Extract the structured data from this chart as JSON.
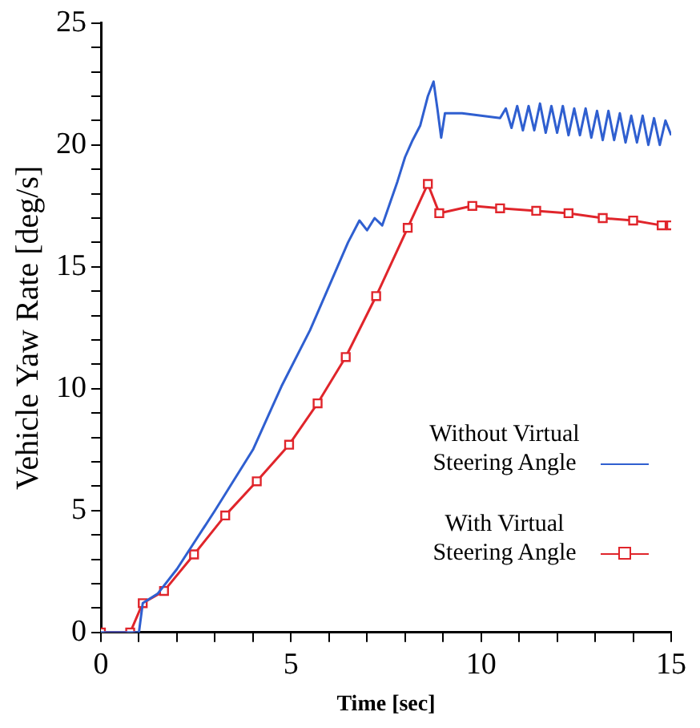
{
  "chart_data": {
    "type": "line",
    "xlabel": "Time [sec]",
    "ylabel": "Vehicle Yaw Rate [deg/s]",
    "xlim": [
      0,
      15
    ],
    "ylim": [
      0,
      25
    ],
    "xticks": [
      0,
      {
        "value": 1,
        "label": null
      },
      {
        "value": 2,
        "label": null
      },
      {
        "value": 3,
        "label": null
      },
      {
        "value": 4,
        "label": null
      },
      5,
      {
        "value": 6,
        "label": null
      },
      {
        "value": 7,
        "label": null
      },
      {
        "value": 8,
        "label": null
      },
      {
        "value": 9,
        "label": null
      },
      10,
      {
        "value": 11,
        "label": null
      },
      {
        "value": 12,
        "label": null
      },
      {
        "value": 13,
        "label": null
      },
      {
        "value": 14,
        "label": null
      },
      15
    ],
    "yticks": [
      0,
      {
        "value": 1,
        "label": null
      },
      {
        "value": 2,
        "label": null
      },
      {
        "value": 3,
        "label": null
      },
      {
        "value": 4,
        "label": null
      },
      5,
      {
        "value": 6,
        "label": null
      },
      {
        "value": 7,
        "label": null
      },
      {
        "value": 8,
        "label": null
      },
      {
        "value": 9,
        "label": null
      },
      10,
      {
        "value": 11,
        "label": null
      },
      {
        "value": 12,
        "label": null
      },
      {
        "value": 13,
        "label": null
      },
      {
        "value": 14,
        "label": null
      },
      15,
      {
        "value": 16,
        "label": null
      },
      {
        "value": 17,
        "label": null
      },
      {
        "value": 18,
        "label": null
      },
      {
        "value": 19,
        "label": null
      },
      20,
      {
        "value": 21,
        "label": null
      },
      {
        "value": 22,
        "label": null
      },
      {
        "value": 23,
        "label": null
      },
      {
        "value": 24,
        "label": null
      },
      25
    ],
    "grid": false,
    "legend": "bottom right",
    "series": [
      {
        "name": "Without Virtual Steering Angle",
        "color": "#2f5fd0",
        "marker": "none",
        "x": [
          0,
          1.0,
          1.1,
          1.5,
          2,
          3,
          4,
          4.75,
          5.5,
          6,
          6.5,
          6.8,
          7.0,
          7.2,
          7.4,
          7.6,
          7.8,
          8.0,
          8.2,
          8.4,
          8.6,
          8.75,
          8.85,
          8.95,
          9.05,
          9.5,
          10,
          10.5,
          10.65,
          10.8,
          10.95,
          11.1,
          11.25,
          11.4,
          11.55,
          11.7,
          11.85,
          12,
          12.15,
          12.3,
          12.45,
          12.6,
          12.75,
          12.9,
          13.05,
          13.2,
          13.35,
          13.5,
          13.65,
          13.8,
          13.95,
          14.1,
          14.25,
          14.4,
          14.55,
          14.7,
          14.85,
          15
        ],
        "values": [
          0,
          0,
          1.2,
          1.6,
          2.6,
          5.0,
          7.5,
          10.1,
          12.4,
          14.2,
          16.0,
          16.9,
          16.5,
          17.0,
          16.7,
          17.6,
          18.5,
          19.5,
          20.2,
          20.8,
          22.0,
          22.6,
          21.5,
          20.3,
          21.3,
          21.3,
          21.2,
          21.1,
          21.5,
          20.7,
          21.6,
          20.6,
          21.6,
          20.6,
          21.7,
          20.5,
          21.6,
          20.5,
          21.6,
          20.4,
          21.5,
          20.4,
          21.5,
          20.3,
          21.4,
          20.2,
          21.4,
          20.2,
          21.3,
          20.1,
          21.2,
          20.1,
          21.2,
          20.0,
          21.1,
          20.0,
          21.0,
          20.4
        ]
      },
      {
        "name": "With Virtual Steering Angle",
        "color": "#e0252b",
        "marker": "square",
        "x": [
          0,
          0.77,
          1.1,
          1.66,
          2.45,
          3.27,
          4.1,
          4.95,
          5.7,
          6.44,
          7.24,
          8.07,
          8.6,
          8.9,
          9.77,
          10.5,
          11.45,
          12.3,
          13.2,
          14.0,
          14.75,
          15
        ],
        "values": [
          0,
          0,
          1.2,
          1.7,
          3.2,
          4.8,
          6.2,
          7.7,
          9.4,
          11.3,
          13.8,
          16.6,
          18.4,
          17.2,
          17.5,
          17.4,
          17.3,
          17.2,
          17.0,
          16.9,
          16.7,
          16.7
        ]
      }
    ]
  }
}
